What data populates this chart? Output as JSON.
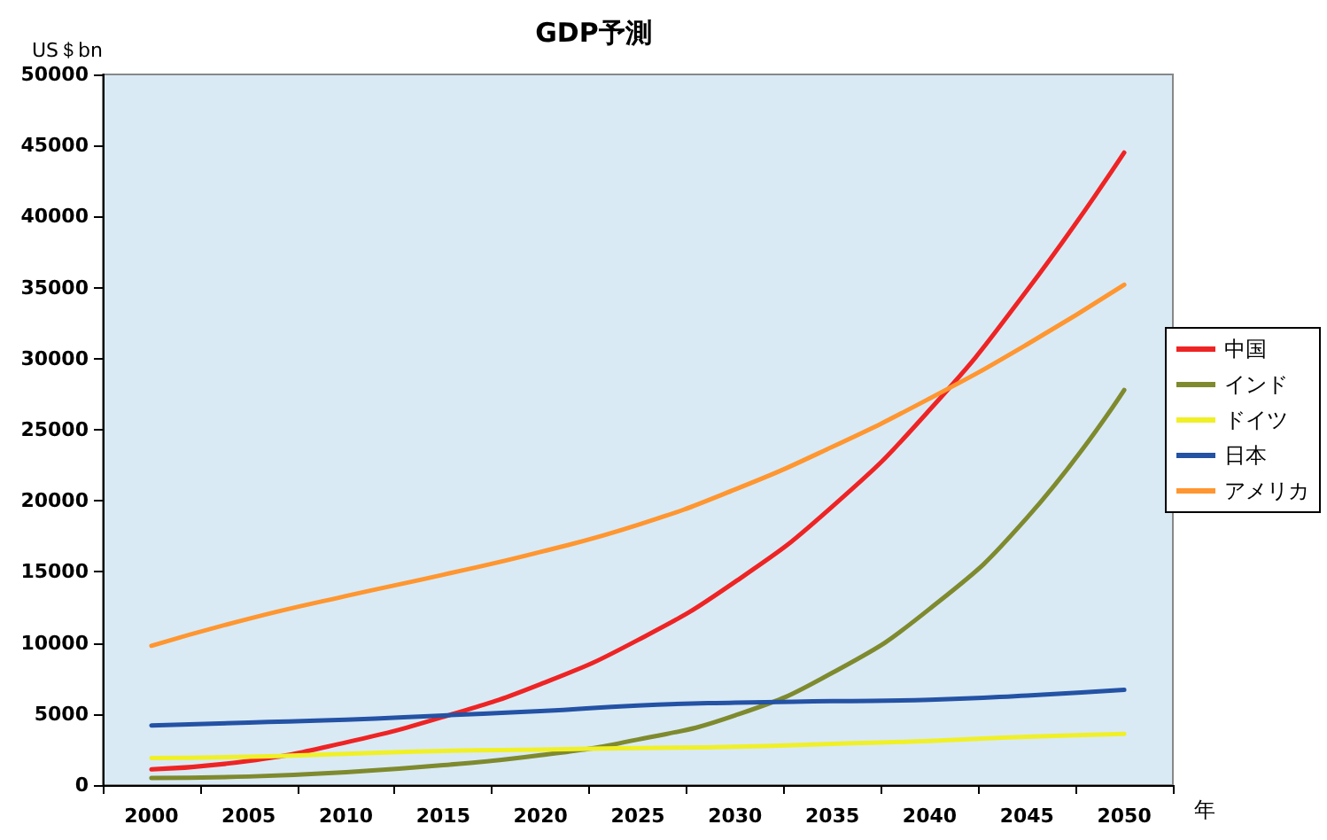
{
  "chart_data": {
    "type": "line",
    "title": "GDP予測",
    "ylabel": "US＄bn",
    "xlabel": "年",
    "categories": [
      "2000",
      "2005",
      "2010",
      "2015",
      "2020",
      "2025",
      "2030",
      "2035",
      "2040",
      "2045",
      "2050"
    ],
    "series": [
      {
        "name": "中国",
        "color": "#ee2424",
        "values": [
          1100,
          1700,
          3000,
          4800,
          7100,
          10200,
          14300,
          19600,
          26400,
          34800,
          44500
        ]
      },
      {
        "name": "インド",
        "color": "#7f8a2e",
        "values": [
          500,
          600,
          900,
          1400,
          2100,
          3200,
          4900,
          7900,
          12400,
          18800,
          27800
        ]
      },
      {
        "name": "ドイツ",
        "color": "#f0f028",
        "values": [
          1900,
          2000,
          2200,
          2400,
          2500,
          2600,
          2700,
          2900,
          3100,
          3400,
          3600
        ]
      },
      {
        "name": "日本",
        "color": "#2452a4",
        "values": [
          4200,
          4400,
          4600,
          4900,
          5200,
          5600,
          5800,
          5900,
          6000,
          6300,
          6700
        ]
      },
      {
        "name": "アメリカ",
        "color": "#ff9630",
        "values": [
          9800,
          11700,
          13300,
          14800,
          16400,
          18300,
          20800,
          23800,
          27200,
          31000,
          35200
        ]
      }
    ],
    "ylim": [
      0,
      50000
    ],
    "yticks": [
      0,
      5000,
      10000,
      15000,
      20000,
      25000,
      30000,
      35000,
      40000,
      45000,
      50000
    ],
    "grid": false,
    "legend": "right",
    "marker": "none",
    "line_style": "solid"
  }
}
